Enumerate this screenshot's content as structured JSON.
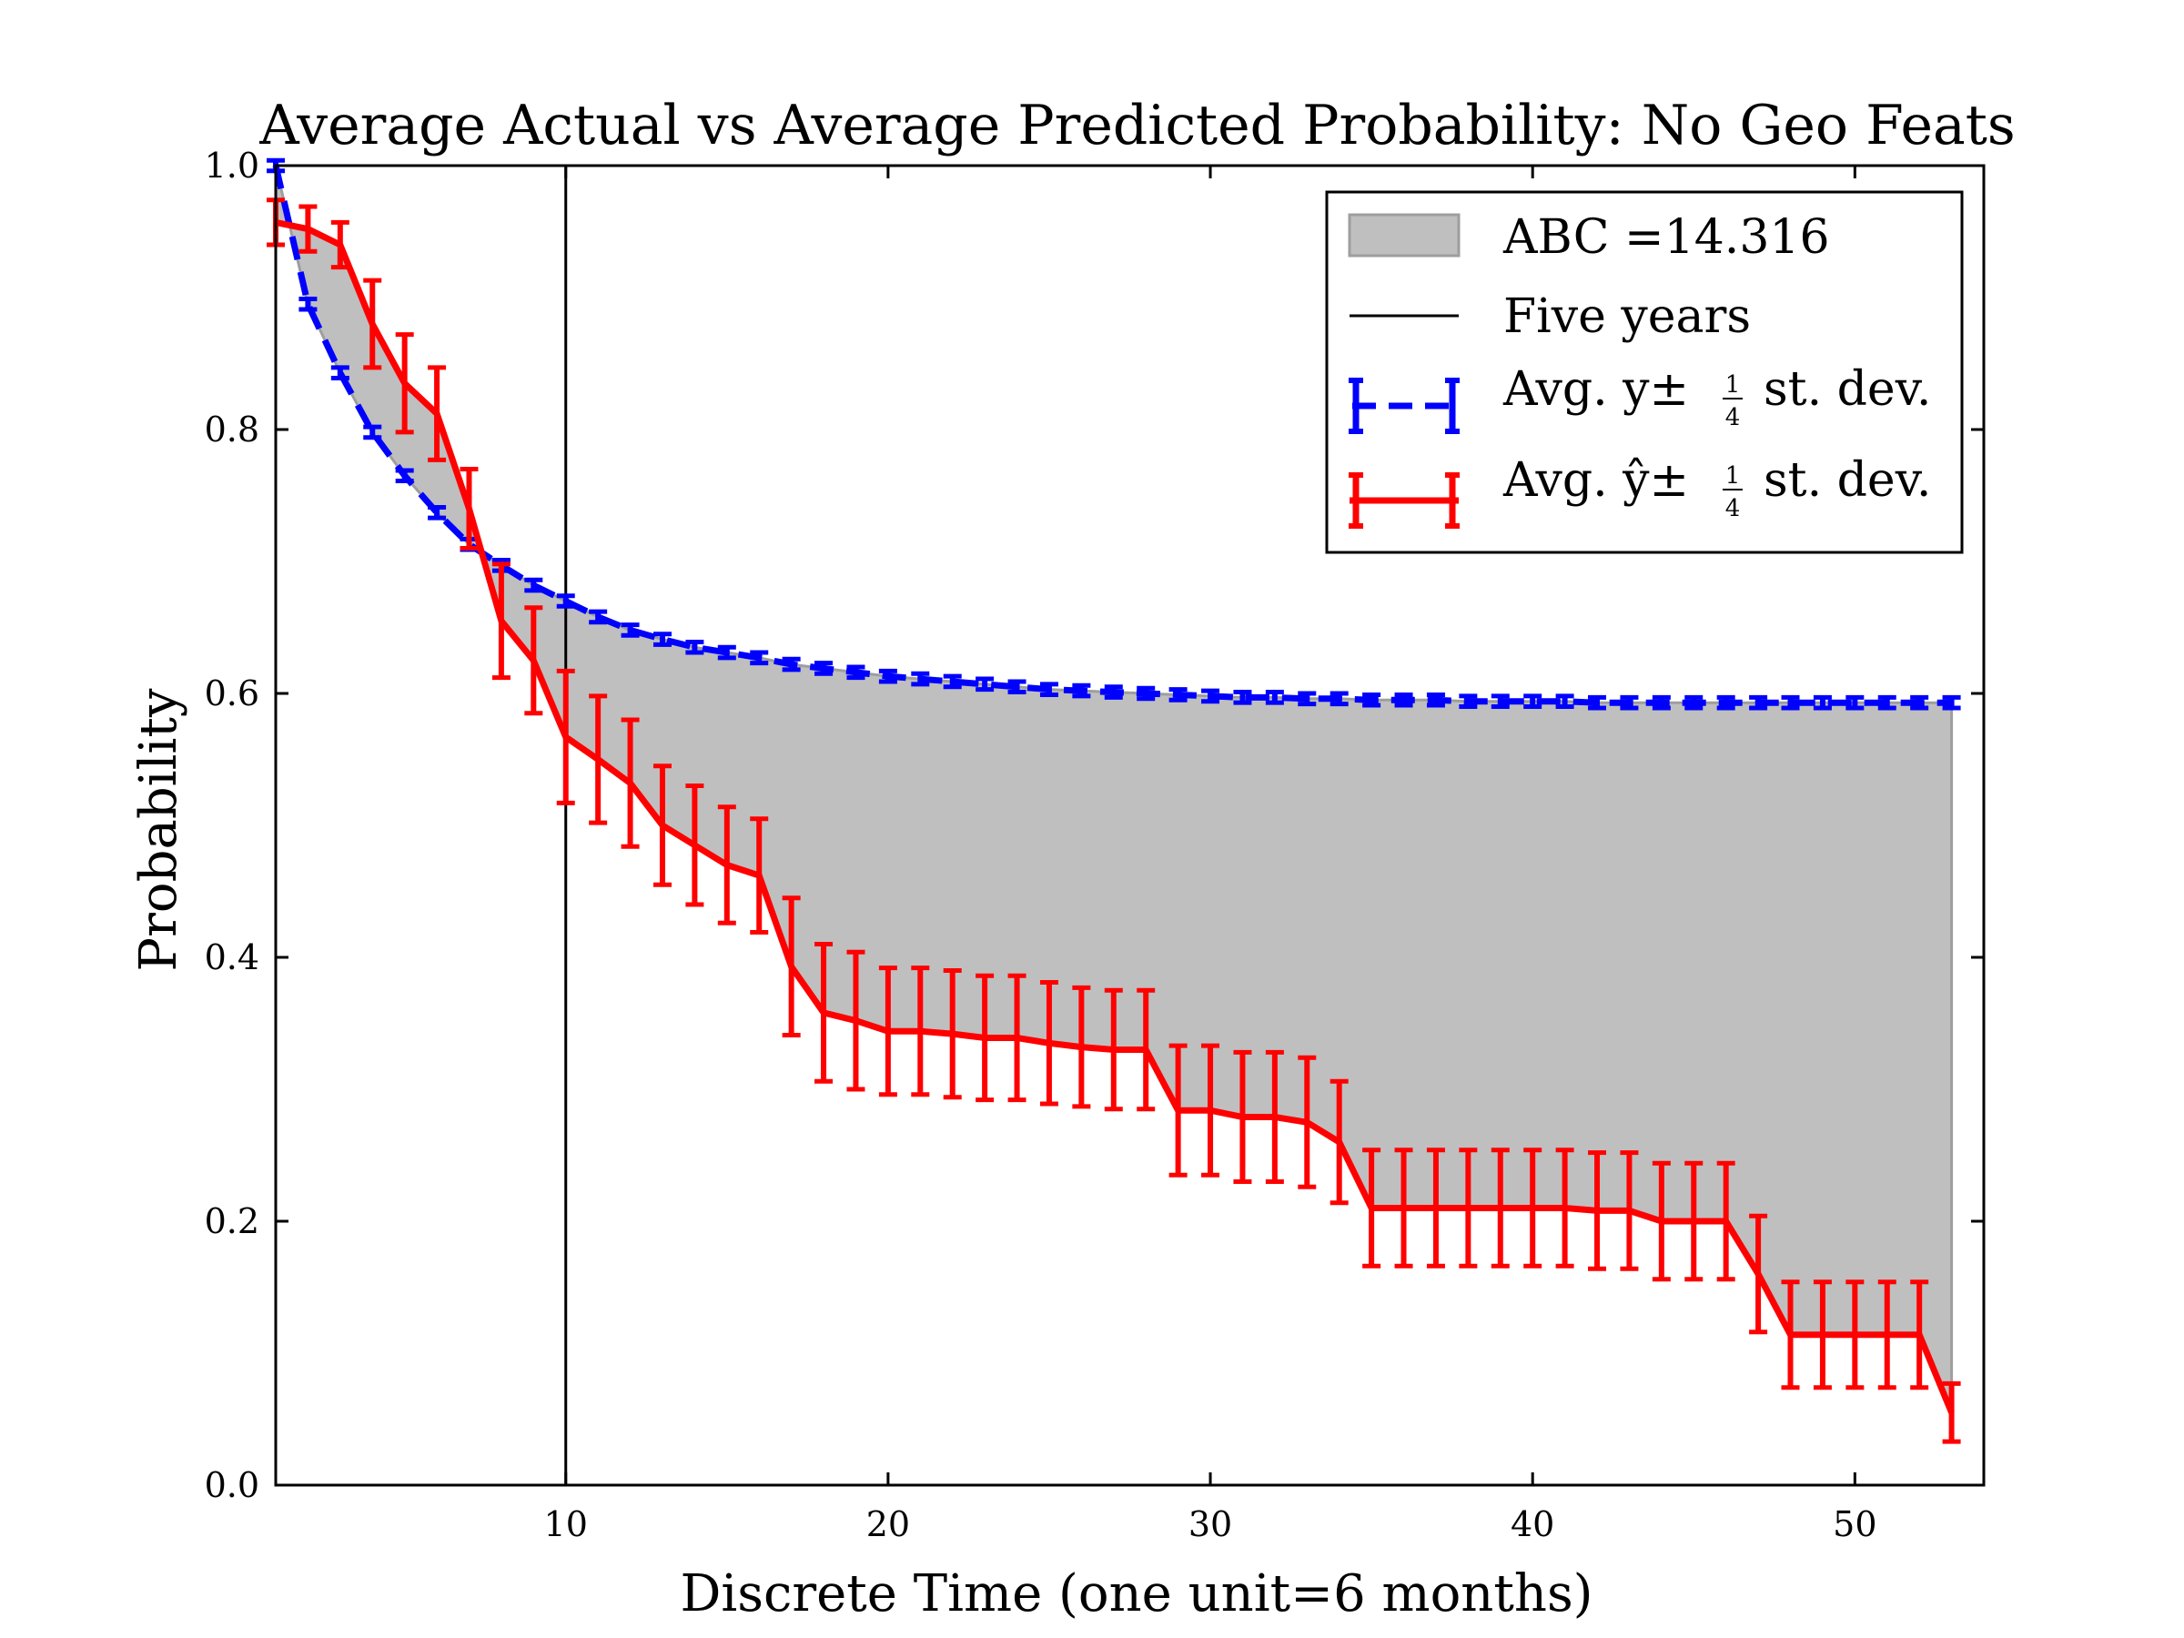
{
  "chart_data": {
    "type": "line",
    "title": "Average Actual vs Average Predicted Probability: No Geo Feats",
    "xlabel": "Discrete Time (one unit=6 months)",
    "ylabel": "Probability",
    "xlim": [
      1,
      54
    ],
    "ylim": [
      0.0,
      1.0
    ],
    "xticks": [
      10,
      20,
      30,
      40,
      50
    ],
    "yticks": [
      0.0,
      0.2,
      0.4,
      0.6,
      0.8,
      1.0
    ],
    "ytick_labels": [
      "0.0",
      "0.2",
      "0.4",
      "0.6",
      "0.8",
      "1.0"
    ],
    "vline": {
      "x": 10,
      "label": "Five years"
    },
    "fill": {
      "label": "ABC =14.316",
      "color": "#bfbfbf"
    },
    "legend": {
      "location": "top-right",
      "entries": [
        {
          "text": "ABC =14.316"
        },
        {
          "text": "Five years"
        },
        {
          "prefix": "Avg. y±",
          "frac_num": "1",
          "frac_den": "4",
          "suffix": "st. dev."
        },
        {
          "prefix": "Avg. ŷ±",
          "frac_num": "1",
          "frac_den": "4",
          "suffix": "st. dev."
        }
      ]
    },
    "series": [
      {
        "name": "Avg. y ± 1/4 st. dev.",
        "color": "#0000ff",
        "style": "dashed",
        "x": [
          1,
          2,
          3,
          4,
          5,
          6,
          7,
          8,
          9,
          10,
          11,
          12,
          13,
          14,
          15,
          16,
          17,
          18,
          19,
          20,
          21,
          22,
          23,
          24,
          25,
          26,
          27,
          28,
          29,
          30,
          31,
          32,
          33,
          34,
          35,
          36,
          37,
          38,
          39,
          40,
          41,
          42,
          43,
          44,
          45,
          46,
          47,
          48,
          49,
          50,
          51,
          52,
          53
        ],
        "values": [
          1.0,
          0.895,
          0.843,
          0.798,
          0.765,
          0.737,
          0.713,
          0.697,
          0.682,
          0.67,
          0.658,
          0.648,
          0.641,
          0.635,
          0.631,
          0.627,
          0.622,
          0.619,
          0.616,
          0.613,
          0.611,
          0.609,
          0.607,
          0.605,
          0.603,
          0.602,
          0.601,
          0.6,
          0.599,
          0.598,
          0.597,
          0.597,
          0.596,
          0.596,
          0.595,
          0.595,
          0.595,
          0.594,
          0.594,
          0.594,
          0.594,
          0.593,
          0.593,
          0.593,
          0.593,
          0.593,
          0.593,
          0.593,
          0.593,
          0.593,
          0.593,
          0.593,
          0.593
        ],
        "errors": [
          0.004,
          0.004,
          0.004,
          0.004,
          0.004,
          0.004,
          0.004,
          0.004,
          0.004,
          0.004,
          0.004,
          0.004,
          0.004,
          0.004,
          0.004,
          0.004,
          0.004,
          0.004,
          0.004,
          0.004,
          0.004,
          0.004,
          0.004,
          0.004,
          0.004,
          0.004,
          0.004,
          0.004,
          0.004,
          0.004,
          0.004,
          0.004,
          0.004,
          0.004,
          0.004,
          0.004,
          0.004,
          0.004,
          0.004,
          0.004,
          0.004,
          0.004,
          0.004,
          0.004,
          0.004,
          0.004,
          0.004,
          0.004,
          0.004,
          0.004,
          0.004,
          0.004,
          0.004
        ]
      },
      {
        "name": "Avg. ŷ ± 1/4 st. dev.",
        "color": "#ff0000",
        "style": "solid",
        "x": [
          1,
          2,
          3,
          4,
          5,
          6,
          7,
          8,
          9,
          10,
          11,
          12,
          13,
          14,
          15,
          16,
          17,
          18,
          19,
          20,
          21,
          22,
          23,
          24,
          25,
          26,
          27,
          28,
          29,
          30,
          31,
          32,
          33,
          34,
          35,
          36,
          37,
          38,
          39,
          40,
          41,
          42,
          43,
          44,
          45,
          46,
          47,
          48,
          49,
          50,
          51,
          52,
          53
        ],
        "values": [
          0.957,
          0.952,
          0.94,
          0.88,
          0.835,
          0.812,
          0.74,
          0.655,
          0.625,
          0.567,
          0.55,
          0.532,
          0.5,
          0.485,
          0.47,
          0.462,
          0.393,
          0.358,
          0.352,
          0.344,
          0.344,
          0.342,
          0.339,
          0.339,
          0.335,
          0.332,
          0.33,
          0.33,
          0.284,
          0.284,
          0.279,
          0.279,
          0.275,
          0.26,
          0.21,
          0.21,
          0.21,
          0.21,
          0.21,
          0.21,
          0.21,
          0.208,
          0.208,
          0.2,
          0.2,
          0.2,
          0.16,
          0.114,
          0.114,
          0.114,
          0.114,
          0.114,
          0.055
        ],
        "errors": [
          0.017,
          0.017,
          0.017,
          0.033,
          0.037,
          0.035,
          0.03,
          0.043,
          0.04,
          0.05,
          0.048,
          0.048,
          0.045,
          0.045,
          0.044,
          0.043,
          0.052,
          0.052,
          0.052,
          0.048,
          0.048,
          0.048,
          0.047,
          0.047,
          0.046,
          0.045,
          0.045,
          0.045,
          0.049,
          0.049,
          0.049,
          0.049,
          0.049,
          0.046,
          0.044,
          0.044,
          0.044,
          0.044,
          0.044,
          0.044,
          0.044,
          0.044,
          0.044,
          0.044,
          0.044,
          0.044,
          0.044,
          0.04,
          0.04,
          0.04,
          0.04,
          0.04,
          0.022
        ]
      }
    ]
  }
}
